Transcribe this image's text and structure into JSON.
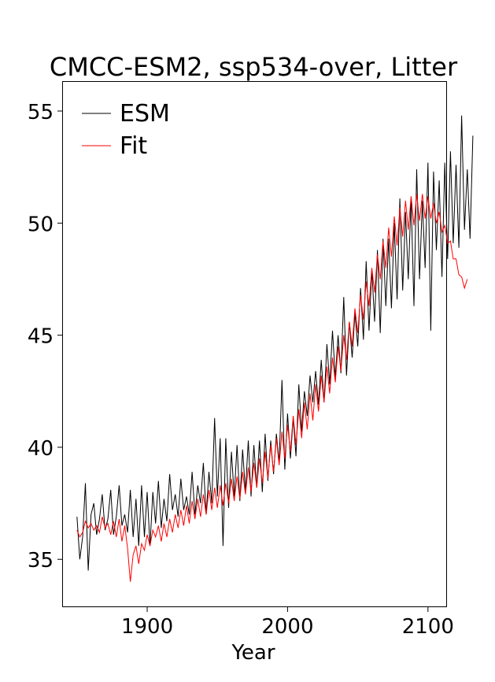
{
  "chart_data": {
    "type": "line",
    "title": "CMCC-ESM2, ssp534-over, Litter",
    "xlabel": "Year",
    "ylabel": "",
    "xlim": [
      1840,
      2113
    ],
    "ylim": [
      32.9,
      56.3
    ],
    "x_ticks": [
      1900,
      2000,
      2100
    ],
    "y_ticks": [
      35,
      40,
      45,
      50,
      55
    ],
    "grid": false,
    "legend": "top-left",
    "x_start": 1850,
    "x_step": 2,
    "series": [
      {
        "name": "ESM",
        "color": "#000000",
        "values": [
          36.9,
          35.0,
          36.0,
          38.4,
          34.5,
          37.0,
          37.5,
          36.1,
          36.8,
          37.9,
          36.3,
          36.8,
          38.1,
          36.1,
          36.9,
          38.3,
          36.5,
          37.0,
          36.2,
          38.1,
          36.0,
          37.7,
          35.6,
          38.3,
          36.0,
          38.0,
          35.6,
          38.0,
          36.6,
          38.5,
          36.4,
          37.7,
          36.7,
          38.8,
          37.2,
          37.9,
          36.9,
          38.6,
          37.2,
          37.8,
          37.0,
          38.9,
          37.0,
          38.3,
          37.5,
          39.3,
          37.0,
          38.9,
          37.5,
          41.3,
          37.8,
          40.4,
          35.6,
          40.4,
          37.3,
          39.8,
          37.8,
          40.1,
          37.6,
          39.9,
          38.0,
          40.3,
          37.8,
          40.1,
          38.2,
          40.3,
          38.0,
          40.6,
          38.5,
          40.3,
          38.8,
          40.6,
          39.3,
          43.0,
          39.0,
          41.5,
          39.5,
          41.3,
          39.6,
          42.8,
          40.7,
          42.5,
          41.4,
          43.2,
          42.0,
          43.4,
          41.9,
          43.9,
          42.0,
          44.6,
          42.8,
          45.2,
          43.1,
          45.0,
          43.3,
          46.7,
          43.2,
          45.6,
          44.0,
          46.0,
          44.5,
          47.1,
          44.8,
          48.3,
          45.2,
          47.9,
          45.6,
          48.8,
          45.1,
          49.3,
          46.3,
          49.3,
          46.2,
          50.0,
          46.6,
          51.1,
          47.0,
          50.5,
          47.5,
          51.1,
          46.3,
          52.4,
          47.5,
          51.0,
          48.0,
          52.7,
          45.2,
          52.3,
          48.8,
          51.9,
          47.6,
          52.7,
          48.4,
          53.2,
          49.1,
          52.6,
          48.9,
          54.8,
          49.7,
          52.4,
          49.3,
          53.9
        ],
        "note_values": "ESM line values in data units, starting 1850, every 2 years"
      },
      {
        "name": "Fit",
        "color": "#ff0000",
        "values": [
          36.3,
          36.0,
          36.2,
          36.7,
          36.4,
          36.6,
          36.3,
          36.5,
          36.2,
          36.9,
          36.4,
          36.6,
          36.1,
          36.7,
          36.0,
          36.8,
          35.8,
          36.5,
          35.5,
          34.0,
          35.2,
          35.6,
          34.8,
          35.7,
          35.4,
          36.1,
          35.6,
          36.3,
          36.0,
          36.5,
          35.8,
          36.6,
          36.0,
          36.8,
          36.2,
          37.0,
          36.4,
          37.2,
          36.5,
          37.4,
          36.6,
          37.6,
          36.8,
          37.7,
          36.9,
          37.9,
          37.0,
          38.1,
          37.2,
          38.2,
          37.3,
          38.3,
          37.4,
          38.4,
          37.5,
          38.6,
          37.6,
          38.7,
          37.7,
          38.9,
          37.9,
          39.1,
          38.0,
          39.3,
          38.2,
          39.5,
          38.4,
          39.8,
          38.6,
          40.1,
          38.9,
          40.4,
          39.2,
          40.7,
          39.5,
          41.0,
          39.8,
          41.4,
          40.1,
          41.7,
          40.4,
          42.0,
          40.8,
          42.4,
          41.2,
          42.8,
          41.6,
          43.2,
          42.0,
          43.6,
          42.4,
          44.0,
          42.9,
          44.5,
          43.4,
          45.0,
          43.9,
          45.6,
          44.5,
          46.2,
          45.1,
          46.8,
          45.7,
          47.4,
          46.3,
          48.0,
          46.9,
          48.6,
          47.5,
          49.2,
          48.0,
          49.8,
          48.5,
          50.3,
          49.0,
          50.7,
          49.4,
          51.0,
          49.7,
          51.2,
          49.9,
          51.3,
          50.1,
          51.3,
          50.2,
          51.2,
          50.2,
          50.9,
          50.0,
          50.5,
          49.6,
          49.9,
          49.1,
          49.2,
          48.4,
          48.4,
          47.7,
          47.6,
          47.1,
          47.5
        ]
      }
    ]
  }
}
